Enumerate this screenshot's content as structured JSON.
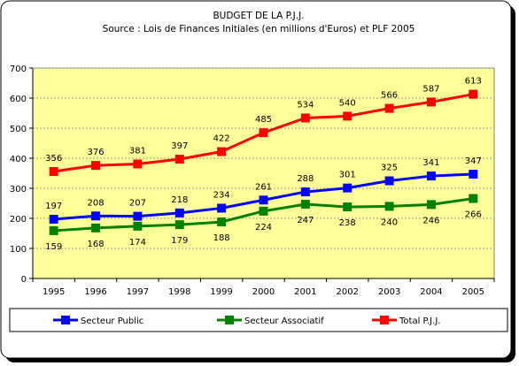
{
  "chart_data": {
    "type": "line",
    "title": "BUDGET DE LA P.J.J.",
    "subtitle": "Source : Lois de Finances Initiales (en millions d'Euros) et PLF 2005",
    "xlabel": "",
    "ylabel": "",
    "x": [
      "1995",
      "1996",
      "1997",
      "1998",
      "1999",
      "2000",
      "2001",
      "2002",
      "2003",
      "2004",
      "2005"
    ],
    "ylim": [
      0,
      700
    ],
    "yticks": [
      "0",
      "100",
      "200",
      "300",
      "400",
      "500",
      "600",
      "700"
    ],
    "grid": true,
    "legend_position": "bottom",
    "series": [
      {
        "name": "Secteur Public",
        "color": "#0000ff",
        "values": [
          197,
          208,
          207,
          218,
          234,
          261,
          288,
          301,
          325,
          341,
          347
        ],
        "label_position": "above"
      },
      {
        "name": "Secteur Associatif",
        "color": "#008000",
        "values": [
          159,
          168,
          174,
          179,
          188,
          224,
          247,
          238,
          240,
          246,
          266
        ],
        "label_position": "below"
      },
      {
        "name": "Total P.J.J.",
        "color": "#ff0000",
        "values": [
          356,
          376,
          381,
          397,
          422,
          485,
          534,
          540,
          566,
          587,
          613
        ],
        "label_position": "above"
      }
    ]
  },
  "colors": {
    "plot_background": "#ffff99",
    "gridline": "#9a9a9a",
    "frame_border": "#000000"
  }
}
